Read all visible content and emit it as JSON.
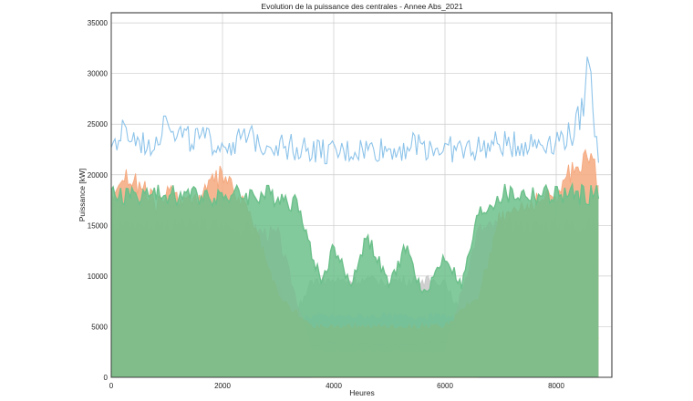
{
  "chart_data": {
    "type": "line",
    "title": "Evolution de la puissance des centrales - Annee Abs_2021",
    "xlabel": "Heures",
    "ylabel": "Puissance [kW]",
    "xlim": [
      0,
      9000
    ],
    "ylim": [
      0,
      36000
    ],
    "xticks": [
      0,
      2000,
      4000,
      6000,
      8000
    ],
    "yticks": [
      0,
      5000,
      10000,
      15000,
      20000,
      25000,
      30000,
      35000
    ],
    "grid": true,
    "legend": "none",
    "series": [
      {
        "color": "#c8c8c8",
        "x": [
          0,
          1000,
          2000,
          3000,
          3600,
          4000,
          5000,
          6000,
          6600,
          7000,
          8000,
          8760
        ],
        "y": [
          2500,
          2500,
          2500,
          2500,
          9500,
          9500,
          9500,
          9500,
          2500,
          2500,
          2500,
          2500
        ]
      },
      {
        "color": "#c5b0d5",
        "x": [
          0,
          1000,
          2000,
          3000,
          3600,
          4000,
          5000,
          6000,
          6600,
          7000,
          8000,
          8760
        ],
        "y": [
          4000,
          4000,
          4000,
          4000,
          3000,
          2500,
          2500,
          2500,
          3500,
          4000,
          4000,
          4000
        ]
      },
      {
        "color": "#aec7e8",
        "x": [
          0,
          1000,
          2000,
          3000,
          3600,
          4000,
          5000,
          6000,
          6600,
          7000,
          8000,
          8760
        ],
        "y": [
          5500,
          5500,
          5500,
          5500,
          6000,
          6000,
          6000,
          6000,
          5500,
          5500,
          5500,
          5500
        ]
      },
      {
        "color": "#fff29a",
        "x": [
          0,
          250,
          500,
          750,
          1000,
          1500,
          2000,
          2500,
          3000,
          3600,
          6600,
          7000,
          7500,
          8000,
          8400,
          8600,
          8760
        ],
        "y": [
          0,
          4500,
          3500,
          3000,
          6500,
          3000,
          3000,
          3000,
          3000,
          0,
          0,
          2000,
          2500,
          3000,
          7500,
          8000,
          4000
        ]
      },
      {
        "color": "#f4a0a0",
        "x": [
          0,
          200,
          500,
          1000,
          1500,
          2000,
          2500,
          3000,
          3600,
          6600,
          7000,
          7500,
          8000,
          8400,
          8760
        ],
        "y": [
          13000,
          11000,
          12000,
          12500,
          12000,
          11000,
          10500,
          9000,
          1500,
          1500,
          11000,
          11500,
          12000,
          12500,
          11000
        ]
      },
      {
        "color": "#8ec4ea",
        "x": [
          0,
          1000,
          2000,
          3000,
          3600,
          4000,
          5000,
          6000,
          6600,
          7000,
          8000,
          8760
        ],
        "y": [
          7000,
          7000,
          7000,
          7000,
          3000,
          3500,
          3000,
          3500,
          7000,
          7000,
          7000,
          7000
        ]
      },
      {
        "color": "#f7b6d2",
        "x": [
          0,
          500,
          1000,
          1500,
          2000,
          2500,
          3000,
          3600,
          4000,
          5000,
          6000,
          6600,
          7000,
          7500,
          8000,
          8500,
          8760
        ],
        "y": [
          15000,
          15000,
          15000,
          15000,
          15000,
          14500,
          14000,
          2500,
          2500,
          2500,
          2500,
          14500,
          15000,
          15000,
          15000,
          15000,
          15000
        ]
      },
      {
        "color": "#f5a97f",
        "x": [
          0,
          200,
          500,
          800,
          1000,
          1500,
          2000,
          2500,
          3000,
          3600,
          4000,
          5000,
          6000,
          6600,
          7000,
          7500,
          8000,
          8300,
          8600,
          8760
        ],
        "y": [
          18000,
          20000,
          19000,
          17000,
          18000,
          17500,
          20000,
          16000,
          8000,
          5000,
          5000,
          5000,
          5000,
          8000,
          16000,
          17000,
          18000,
          20500,
          22500,
          19000
        ]
      },
      {
        "color": "#6cc08b",
        "x": [
          0,
          500,
          1000,
          1500,
          2000,
          2500,
          3000,
          3400,
          3600,
          3800,
          4000,
          4300,
          4600,
          5000,
          5300,
          5600,
          6000,
          6300,
          6600,
          7000,
          7500,
          8000,
          8500,
          8760
        ],
        "y": [
          18000,
          18000,
          18000,
          18000,
          18000,
          18000,
          18000,
          17000,
          12000,
          9500,
          13000,
          9000,
          14000,
          9000,
          13000,
          8000,
          12000,
          9000,
          16000,
          18000,
          18000,
          18000,
          18000,
          18000
        ]
      },
      {
        "color": "#8ec4ea",
        "x": [
          0,
          200,
          400,
          600,
          800,
          1000,
          1200,
          1500,
          2000,
          2500,
          3000,
          3600,
          4000,
          4500,
          5000,
          5500,
          6000,
          6500,
          7000,
          7500,
          8000,
          8300,
          8500,
          8600,
          8700,
          8760
        ],
        "y": [
          22500,
          24000,
          23500,
          23000,
          23500,
          26000,
          24000,
          23500,
          23000,
          23500,
          23000,
          22500,
          22000,
          22500,
          22500,
          23000,
          22500,
          22500,
          23000,
          23000,
          23500,
          24000,
          27000,
          33000,
          24000,
          22000
        ]
      }
    ]
  }
}
